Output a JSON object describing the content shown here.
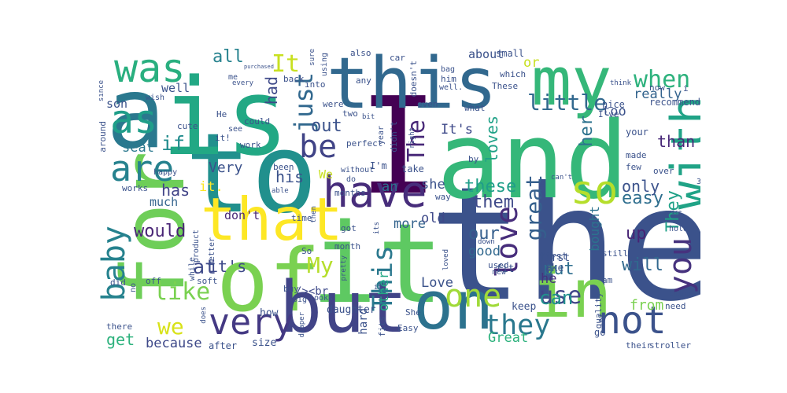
{
  "title": "",
  "words": [
    {
      "text": "the",
      "color": "#3b528b",
      "vertical": false
    },
    {
      "text": "and",
      "color": "#35b779",
      "vertical": false
    },
    {
      "text": "to",
      "color": "#21908d",
      "vertical": false
    },
    {
      "text": "I",
      "color": "#440154",
      "vertical": false
    },
    {
      "text": "it",
      "color": "#5ec962",
      "vertical": false
    },
    {
      "text": "is",
      "color": "#22a884",
      "vertical": false
    },
    {
      "text": "a",
      "color": "#2a788e",
      "vertical": false
    },
    {
      "text": "for",
      "color": "#6ece58",
      "vertical": true
    },
    {
      "text": "of",
      "color": "#7ad151",
      "vertical": false
    },
    {
      "text": "this",
      "color": "#31688e",
      "vertical": false
    },
    {
      "text": "my",
      "color": "#35b779",
      "vertical": false
    },
    {
      "text": "but",
      "color": "#414487",
      "vertical": false
    },
    {
      "text": "on",
      "color": "#2c728e",
      "vertical": false
    },
    {
      "text": "in",
      "color": "#7ad151",
      "vertical": false
    },
    {
      "text": "that",
      "color": "#fde725",
      "vertical": false
    },
    {
      "text": "was",
      "color": "#29af7f",
      "vertical": false
    },
    {
      "text": "with",
      "color": "#20a386",
      "vertical": true
    },
    {
      "text": "have",
      "color": "#472d7b",
      "vertical": false
    },
    {
      "text": "as",
      "color": "#1f9e89",
      "vertical": false
    },
    {
      "text": "very",
      "color": "#443983",
      "vertical": false
    },
    {
      "text": "not",
      "color": "#3b528b",
      "vertical": false
    },
    {
      "text": "so",
      "color": "#b5de2b",
      "vertical": false
    },
    {
      "text": "are",
      "color": "#26828e",
      "vertical": false
    },
    {
      "text": "one",
      "color": "#a0da39",
      "vertical": false
    },
    {
      "text": "baby",
      "color": "#26828e",
      "vertical": true
    },
    {
      "text": "you",
      "color": "#46327e",
      "vertical": true
    },
    {
      "text": "love",
      "color": "#472d7b",
      "vertical": true
    },
    {
      "text": "be",
      "color": "#414487",
      "vertical": false
    },
    {
      "text": "This",
      "color": "#2a788e",
      "vertical": true
    },
    {
      "text": "just",
      "color": "#31688e",
      "vertical": true
    },
    {
      "text": "They",
      "color": "#1fa187",
      "vertical": true
    },
    {
      "text": "they",
      "color": "#2a788e",
      "vertical": false
    },
    {
      "text": "The",
      "color": "#482878",
      "vertical": true
    },
    {
      "text": "My",
      "color": "#b5de2b",
      "vertical": false
    },
    {
      "text": "It",
      "color": "#c8e020",
      "vertical": false
    },
    {
      "text": "like",
      "color": "#7ad151",
      "vertical": false
    },
    {
      "text": "when",
      "color": "#2db27d",
      "vertical": false
    },
    {
      "text": "little",
      "color": "#31688e",
      "vertical": false
    },
    {
      "text": "great",
      "color": "#355f8d",
      "vertical": true
    },
    {
      "text": "use",
      "color": "#404688",
      "vertical": false
    },
    {
      "text": "we",
      "color": "#d8e219",
      "vertical": false
    },
    {
      "text": "all",
      "color": "#26828e",
      "vertical": false
    },
    {
      "text": "had",
      "color": "#3e4989",
      "vertical": true
    },
    {
      "text": "at",
      "color": "#3e4989",
      "vertical": false
    },
    {
      "text": "can",
      "color": "#21908d",
      "vertical": false
    },
    {
      "text": "up",
      "color": "#482475",
      "vertical": false
    },
    {
      "text": "out",
      "color": "#3b528b",
      "vertical": false
    },
    {
      "text": "would",
      "color": "#482475",
      "vertical": false
    },
    {
      "text": "them",
      "color": "#3e4989",
      "vertical": false
    },
    {
      "text": "easy",
      "color": "#2e6e8e",
      "vertical": false
    },
    {
      "text": "our",
      "color": "#355f8d",
      "vertical": false
    },
    {
      "text": "these",
      "color": "#1f9e89",
      "vertical": false
    },
    {
      "text": "if",
      "color": "#228c8d",
      "vertical": false
    },
    {
      "text": "her",
      "color": "#2c728e",
      "vertical": true
    },
    {
      "text": "has",
      "color": "#414487",
      "vertical": false
    },
    {
      "text": "only",
      "color": "#3b528b",
      "vertical": false
    },
    {
      "text": "it's",
      "color": "#3e4989",
      "vertical": false
    },
    {
      "text": "than",
      "color": "#482878",
      "vertical": false
    },
    {
      "text": "will",
      "color": "#31688e",
      "vertical": false
    },
    {
      "text": "loves",
      "color": "#1fa187",
      "vertical": true
    },
    {
      "text": "put",
      "color": "#2e6e8e",
      "vertical": false
    },
    {
      "text": "Very",
      "color": "#3b528b",
      "vertical": false
    },
    {
      "text": "from",
      "color": "#7ad151",
      "vertical": false
    },
    {
      "text": "Love",
      "color": "#3b528b",
      "vertical": false
    },
    {
      "text": "more",
      "color": "#33638d",
      "vertical": false
    },
    {
      "text": "other",
      "color": "#22a884",
      "vertical": true
    },
    {
      "text": "It's",
      "color": "#3e4989",
      "vertical": false
    },
    {
      "text": "good",
      "color": "#31688e",
      "vertical": false
    },
    {
      "text": "bought",
      "color": "#2c728e",
      "vertical": true
    },
    {
      "text": "really",
      "color": "#33638d",
      "vertical": false
    },
    {
      "text": "get",
      "color": "#2db27d",
      "vertical": false
    },
    {
      "text": "because",
      "color": "#3e4989",
      "vertical": false
    },
    {
      "text": "Great",
      "color": "#2db27d",
      "vertical": false
    },
    {
      "text": "his",
      "color": "#3b528b",
      "vertical": false
    },
    {
      "text": "an",
      "color": "#2c728e",
      "vertical": false
    },
    {
      "text": "she",
      "color": "#3b528b",
      "vertical": false
    },
    {
      "text": "old",
      "color": "#3e4989",
      "vertical": false
    },
    {
      "text": "he",
      "color": "#46327e",
      "vertical": false
    },
    {
      "text": "much",
      "color": "#33638d",
      "vertical": false
    },
    {
      "text": "too",
      "color": "#3b528b",
      "vertical": false
    },
    {
      "text": "or",
      "color": "#c8e020",
      "vertical": false
    },
    {
      "text": "seat",
      "color": "#2a788e",
      "vertical": false
    },
    {
      "text": "son",
      "color": "#3b528b",
      "vertical": false
    },
    {
      "text": "well",
      "color": "#3b528b",
      "vertical": false
    },
    {
      "text": "don't",
      "color": "#482878",
      "vertical": false
    },
    {
      "text": "about",
      "color": "#3b528b",
      "vertical": false
    },
    {
      "text": "We",
      "color": "#c8e020",
      "vertical": false
    },
    {
      "text": "it.",
      "color": "#fde725",
      "vertical": false
    },
    {
      "text": "/><br",
      "color": "#3e4989",
      "vertical": false
    },
    {
      "text": "keep",
      "color": "#3b528b",
      "vertical": false
    },
    {
      "text": "fit",
      "color": "#3b528b",
      "vertical": false
    },
    {
      "text": "make",
      "color": "#3b528b",
      "vertical": false
    },
    {
      "text": "first",
      "color": "#3b528b",
      "vertical": false
    },
    {
      "text": "used",
      "color": "#3b528b",
      "vertical": false
    },
    {
      "text": "quality",
      "color": "#3b528b",
      "vertical": true
    },
    {
      "text": "daughter",
      "color": "#3b528b",
      "vertical": false
    },
    {
      "text": "how",
      "color": "#3b528b",
      "vertical": false
    },
    {
      "text": "size",
      "color": "#3b528b",
      "vertical": false
    },
    {
      "text": "after",
      "color": "#3b528b",
      "vertical": false
    },
    {
      "text": "hard",
      "color": "#3b528b",
      "vertical": true
    },
    {
      "text": "fits",
      "color": "#3b528b",
      "vertical": true
    },
    {
      "text": "Easy",
      "color": "#3b528b",
      "vertical": false
    },
    {
      "text": "She",
      "color": "#3b528b",
      "vertical": false
    },
    {
      "text": "still",
      "color": "#3b528b",
      "vertical": false
    },
    {
      "text": "am",
      "color": "#3b528b",
      "vertical": false
    },
    {
      "text": "thing",
      "color": "#3b528b",
      "vertical": false
    },
    {
      "text": "need",
      "color": "#3b528b",
      "vertical": false
    },
    {
      "text": "over",
      "color": "#3b528b",
      "vertical": false
    },
    {
      "text": "few",
      "color": "#3b528b",
      "vertical": false
    },
    {
      "text": "made",
      "color": "#3b528b",
      "vertical": false
    },
    {
      "text": "your",
      "color": "#3b528b",
      "vertical": false
    },
    {
      "text": "I've",
      "color": "#3b528b",
      "vertical": false
    },
    {
      "text": "nice",
      "color": "#3b528b",
      "vertical": false
    },
    {
      "text": "recommend",
      "color": "#3b528b",
      "vertical": false
    },
    {
      "text": "now",
      "color": "#3b528b",
      "vertical": false
    },
    {
      "text": "think",
      "color": "#3b528b",
      "vertical": false
    },
    {
      "text": "These",
      "color": "#3b528b",
      "vertical": false
    },
    {
      "text": "what",
      "color": "#3b528b",
      "vertical": false
    },
    {
      "text": "small",
      "color": "#3b528b",
      "vertical": false
    },
    {
      "text": "which",
      "color": "#3b528b",
      "vertical": false
    },
    {
      "text": "him",
      "color": "#3b528b",
      "vertical": false
    },
    {
      "text": "bag",
      "color": "#3b528b",
      "vertical": false
    },
    {
      "text": "car",
      "color": "#3b528b",
      "vertical": false
    },
    {
      "text": "also",
      "color": "#3b528b",
      "vertical": false
    },
    {
      "text": "doesn't",
      "color": "#3b528b",
      "vertical": true
    },
    {
      "text": "well.",
      "color": "#3b528b",
      "vertical": false
    },
    {
      "text": "even",
      "color": "#3b528b",
      "vertical": false
    },
    {
      "text": "bit",
      "color": "#3b528b",
      "vertical": false
    },
    {
      "text": "right",
      "color": "#3b528b",
      "vertical": true
    },
    {
      "text": "year",
      "color": "#3b528b",
      "vertical": true
    },
    {
      "text": "didn't",
      "color": "#3b528b",
      "vertical": true
    },
    {
      "text": "two",
      "color": "#3b528b",
      "vertical": false
    },
    {
      "text": "were",
      "color": "#3b528b",
      "vertical": false
    },
    {
      "text": "perfect",
      "color": "#3b528b",
      "vertical": false
    },
    {
      "text": "I'm",
      "color": "#3b528b",
      "vertical": false
    },
    {
      "text": "take",
      "color": "#3b528b",
      "vertical": false
    },
    {
      "text": "by",
      "color": "#3b528b",
      "vertical": false
    },
    {
      "text": "can't",
      "color": "#3b528b",
      "vertical": false
    },
    {
      "text": "some",
      "color": "#3b528b",
      "vertical": true
    },
    {
      "text": "way",
      "color": "#3b528b",
      "vertical": false
    },
    {
      "text": "without",
      "color": "#3b528b",
      "vertical": false
    },
    {
      "text": "do",
      "color": "#3b528b",
      "vertical": false
    },
    {
      "text": "months",
      "color": "#3b528b",
      "vertical": false
    },
    {
      "text": "got",
      "color": "#3b528b",
      "vertical": false
    },
    {
      "text": "month",
      "color": "#3b528b",
      "vertical": false
    },
    {
      "text": "down",
      "color": "#3b528b",
      "vertical": false
    },
    {
      "text": "its",
      "color": "#3b528b",
      "vertical": true
    },
    {
      "text": "pretty",
      "color": "#3b528b",
      "vertical": true
    },
    {
      "text": "new",
      "color": "#3b528b",
      "vertical": false
    },
    {
      "text": "loved",
      "color": "#3b528b",
      "vertical": true
    },
    {
      "text": "it,",
      "color": "#3b528b",
      "vertical": false
    },
    {
      "text": "looks",
      "color": "#3b528b",
      "vertical": false
    },
    {
      "text": "big",
      "color": "#3b528b",
      "vertical": false
    },
    {
      "text": "buy",
      "color": "#3b528b",
      "vertical": false
    },
    {
      "text": "So",
      "color": "#3b528b",
      "vertical": false
    },
    {
      "text": "soft",
      "color": "#3b528b",
      "vertical": false
    },
    {
      "text": "better",
      "color": "#3b528b",
      "vertical": true
    },
    {
      "text": "time",
      "color": "#3b528b",
      "vertical": false
    },
    {
      "text": "then",
      "color": "#3b528b",
      "vertical": true
    },
    {
      "text": "able",
      "color": "#3b528b",
      "vertical": false
    },
    {
      "text": "been",
      "color": "#3b528b",
      "vertical": false
    },
    {
      "text": "product",
      "color": "#3b528b",
      "vertical": true
    },
    {
      "text": "while",
      "color": "#3b528b",
      "vertical": true
    },
    {
      "text": "off",
      "color": "#3b528b",
      "vertical": false
    },
    {
      "text": "did",
      "color": "#3b528b",
      "vertical": false
    },
    {
      "text": "no",
      "color": "#3b528b",
      "vertical": true
    },
    {
      "text": "there",
      "color": "#3b528b",
      "vertical": false
    },
    {
      "text": "does",
      "color": "#3b528b",
      "vertical": true
    },
    {
      "text": "diaper",
      "color": "#3b528b",
      "vertical": true
    },
    {
      "text": "their",
      "color": "#3b528b",
      "vertical": false
    },
    {
      "text": "stroller",
      "color": "#3b528b",
      "vertical": false
    },
    {
      "text": "go",
      "color": "#3b528b",
      "vertical": false
    },
    {
      "text": "2",
      "color": "#3b528b",
      "vertical": false
    },
    {
      "text": "hold",
      "color": "#3b528b",
      "vertical": false
    },
    {
      "text": "price",
      "color": "#3b528b",
      "vertical": false
    },
    {
      "text": "enough",
      "color": "#3b528b",
      "vertical": true
    },
    {
      "text": "3",
      "color": "#3b528b",
      "vertical": false
    },
    {
      "text": "work",
      "color": "#3b528b",
      "vertical": false
    },
    {
      "text": "works",
      "color": "#3b528b",
      "vertical": false
    },
    {
      "text": "happy",
      "color": "#3b528b",
      "vertical": false
    },
    {
      "text": "cute",
      "color": "#3b528b",
      "vertical": false
    },
    {
      "text": "around",
      "color": "#3b528b",
      "vertical": true
    },
    {
      "text": "He",
      "color": "#3b528b",
      "vertical": false
    },
    {
      "text": "see",
      "color": "#3b528b",
      "vertical": false
    },
    {
      "text": "could",
      "color": "#3b528b",
      "vertical": false
    },
    {
      "text": "it!",
      "color": "#3b528b",
      "vertical": false
    },
    {
      "text": "since",
      "color": "#3b528b",
      "vertical": true
    },
    {
      "text": "wish",
      "color": "#3b528b",
      "vertical": false
    },
    {
      "text": "every",
      "color": "#3b528b",
      "vertical": false
    },
    {
      "text": "me",
      "color": "#3b528b",
      "vertical": false
    },
    {
      "text": "purchased",
      "color": "#3b528b",
      "vertical": false
    },
    {
      "text": "back",
      "color": "#3b528b",
      "vertical": false
    },
    {
      "text": "into",
      "color": "#3b528b",
      "vertical": false
    },
    {
      "text": "using",
      "color": "#3b528b",
      "vertical": true
    },
    {
      "text": "sure",
      "color": "#3b528b",
      "vertical": true
    },
    {
      "text": "any",
      "color": "#3b528b",
      "vertical": false
    },
    {
      "text": "i",
      "color": "#3b528b",
      "vertical": false
    },
    {
      "text": "first",
      "color": "#3b528b",
      "vertical": false
    }
  ]
}
